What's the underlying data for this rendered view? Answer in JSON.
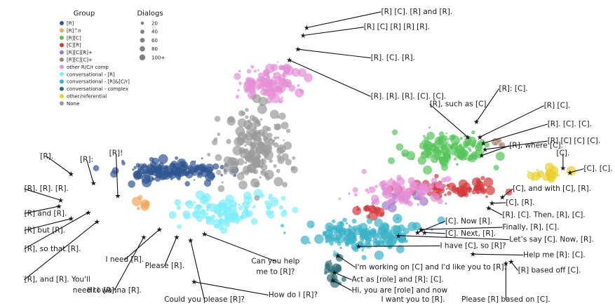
{
  "chart_data": {
    "type": "scatter",
    "title": "",
    "xlabel": "",
    "ylabel": "",
    "grid": false,
    "legend_placement": "top-left",
    "legend": {
      "group_title": "Group",
      "groups": [
        {
          "label": "[R]",
          "color": "#2f5592"
        },
        {
          "label": "[R]^n",
          "color": "#f2a55a"
        },
        {
          "label": "[R][C]",
          "color": "#56c45a"
        },
        {
          "label": "[C][R]",
          "color": "#d13b3b"
        },
        {
          "label": "[R][C][R]+",
          "color": "#9b7cc9"
        },
        {
          "label": "[R][C][C]+",
          "color": "#a9806f"
        },
        {
          "label": "other R/C/r comp",
          "color": "#e58fd6"
        },
        {
          "label": "conversational - [R]",
          "color": "#7eeefa"
        },
        {
          "label": "conversational - [R]&[C/r]",
          "color": "#3ab2c8"
        },
        {
          "label": "conversational - complex",
          "color": "#2e6e78"
        },
        {
          "label": "other/referential",
          "color": "#e8d02c"
        },
        {
          "label": "None",
          "color": "#9a9a9a"
        }
      ],
      "size_title": "Dialogs",
      "sizes": [
        {
          "label": "20",
          "value": 20
        },
        {
          "label": "40",
          "value": 40
        },
        {
          "label": "60",
          "value": 60
        },
        {
          "label": "80",
          "value": 80
        },
        {
          "label": "100+",
          "value": 100
        }
      ]
    },
    "clusters": [
      {
        "group": "[R]",
        "cx": -8,
        "cy": 1.4,
        "sx": 2.6,
        "sy": 0.55,
        "n": 150
      },
      {
        "group": "[R]^n",
        "cx": -10,
        "cy": -0.7,
        "sx": 0.8,
        "sy": 0.5,
        "n": 6
      },
      {
        "group": "[R][C]",
        "cx": 8,
        "cy": 2.8,
        "sx": 2.2,
        "sy": 1.0,
        "n": 130
      },
      {
        "group": "[C][R]",
        "cx": 8.2,
        "cy": 0.2,
        "sx": 2.4,
        "sy": 0.45,
        "n": 70
      },
      {
        "group": "[C][R]",
        "cx": 3.4,
        "cy": -1.2,
        "sx": 0.9,
        "sy": 0.4,
        "n": 16
      },
      {
        "group": "[R][C][R]+",
        "cx": 5.6,
        "cy": -0.4,
        "sx": 1.2,
        "sy": 0.45,
        "n": 25
      },
      {
        "group": "[R][C][C]+",
        "cx": 10.8,
        "cy": 3.0,
        "sx": 0.5,
        "sy": 0.5,
        "n": 6
      },
      {
        "group": "other R/C/r comp",
        "cx": -2.5,
        "cy": 7.2,
        "sx": 1.5,
        "sy": 0.9,
        "n": 110
      },
      {
        "group": "other R/C/r comp",
        "cx": 5.2,
        "cy": 0.2,
        "sx": 2.4,
        "sy": 0.8,
        "n": 80
      },
      {
        "group": "conversational - [R]",
        "cx": -4.8,
        "cy": -1.3,
        "sx": 2.4,
        "sy": 0.9,
        "n": 130
      },
      {
        "group": "conversational - [R]&[C/r]",
        "cx": 2.8,
        "cy": -2.8,
        "sx": 2.7,
        "sy": 0.9,
        "n": 160
      },
      {
        "group": "conversational - complex",
        "cx": 1.4,
        "cy": -5.0,
        "sx": 0.45,
        "sy": 0.7,
        "n": 22
      },
      {
        "group": "other/referential",
        "cx": 13.6,
        "cy": 1.2,
        "sx": 1.1,
        "sy": 0.3,
        "n": 22
      },
      {
        "group": "None",
        "cx": -3.2,
        "cy": 2.8,
        "sx": 1.7,
        "sy": 2.0,
        "n": 190
      }
    ],
    "annotations": [
      {
        "text": "[R] [C]. [R] and [R].",
        "x": -0.3,
        "y": 10.7,
        "lx": 4.0,
        "ly": 11.6,
        "anchor": "start"
      },
      {
        "text": "[R] [C] [R] [R] [R].",
        "x": -0.5,
        "y": 10.2,
        "lx": 3.0,
        "ly": 10.6,
        "anchor": "start"
      },
      {
        "text": "[R]. [C]. [R].",
        "x": -0.8,
        "y": 9.3,
        "lx": 3.4,
        "ly": 8.6,
        "anchor": "start"
      },
      {
        "text": "[R]. [R]. [R]. [C]. [C].",
        "x": -1.3,
        "y": 8.6,
        "lx": 3.4,
        "ly": 6.1,
        "anchor": "start"
      },
      {
        "text": "[R]: [C].",
        "x": 9.5,
        "y": 4.6,
        "lx": 10.8,
        "ly": 6.6,
        "anchor": "start"
      },
      {
        "text": "[R], such as [C].",
        "x": 9.0,
        "y": 3.6,
        "lx": 6.8,
        "ly": 5.6,
        "anchor": "start"
      },
      {
        "text": "[R] [C].",
        "x": 9.7,
        "y": 3.6,
        "lx": 13.4,
        "ly": 5.5,
        "anchor": "start"
      },
      {
        "text": "[R]. [C]. [C].",
        "x": 9.9,
        "y": 3.2,
        "lx": 13.6,
        "ly": 4.3,
        "anchor": "start"
      },
      {
        "text": "[R] [C] [C] [C].",
        "x": 10.0,
        "y": 2.8,
        "lx": 13.6,
        "ly": 3.2,
        "anchor": "start"
      },
      {
        "text": "[R], where [C].",
        "x": 9.8,
        "y": 2.4,
        "lx": 11.4,
        "ly": 2.9,
        "anchor": "start"
      },
      {
        "text": "[C].",
        "x": 14.5,
        "y": 1.6,
        "lx": 14.5,
        "ly": 2.4,
        "anchor": "middle"
      },
      {
        "text": "[C]. [C].",
        "x": 14.9,
        "y": 1.3,
        "lx": 15.7,
        "ly": 1.4,
        "anchor": "start"
      },
      {
        "text": "[C], and with [C], [R].",
        "x": 11.0,
        "y": -0.3,
        "lx": 11.6,
        "ly": 0.1,
        "anchor": "start"
      },
      {
        "text": "[C], [R].",
        "x": 10.4,
        "y": -0.7,
        "lx": 11.2,
        "ly": -0.8,
        "anchor": "start"
      },
      {
        "text": "[R]. [C]. Then, [R], [C].",
        "x": 10.2,
        "y": -1.0,
        "lx": 11.0,
        "ly": -1.6,
        "anchor": "start"
      },
      {
        "text": "Finally, [R], [C].",
        "x": 6.3,
        "y": -2.4,
        "lx": 11.0,
        "ly": -2.4,
        "anchor": "start"
      },
      {
        "text": "[C]. Now [R].",
        "x": 6.1,
        "y": -2.6,
        "lx": 7.7,
        "ly": -2.0,
        "anchor": "start"
      },
      {
        "text": "[C]. Next, [R].",
        "x": 6.5,
        "y": -2.6,
        "lx": 7.7,
        "ly": -2.8,
        "anchor": "start"
      },
      {
        "text": "Let’s say [C]. Now, [R].",
        "x": 5.0,
        "y": -2.8,
        "lx": 11.4,
        "ly": -3.2,
        "anchor": "start"
      },
      {
        "text": "I have [C], so [R]?",
        "x": 2.7,
        "y": -3.5,
        "lx": 7.4,
        "ly": -3.6,
        "anchor": "start"
      },
      {
        "text": "Help me [R]: [C].",
        "x": 9.3,
        "y": -4.0,
        "lx": 12.2,
        "ly": -4.2,
        "anchor": "start"
      },
      {
        "text": "[R] based off [C].",
        "x": 11.5,
        "y": -4.5,
        "lx": 11.9,
        "ly": -5.2,
        "anchor": "start"
      },
      {
        "text": "Please [R] based on [C].",
        "x": 11.2,
        "y": -4.6,
        "lx": 11.2,
        "ly": -7.1,
        "anchor": "middle"
      },
      {
        "text": "I'm working on [C] and I'd like you to [R].",
        "x": 1.5,
        "y": -4.1,
        "lx": 2.5,
        "ly": -5.0,
        "anchor": "start"
      },
      {
        "text": "Act as [role] and [R]: [C].",
        "x": 1.3,
        "y": -5.2,
        "lx": 2.3,
        "ly": -5.8,
        "anchor": "start"
      },
      {
        "text": "Hi, you are [role] and now",
        "x": 1.2,
        "y": -5.7,
        "lx": 2.3,
        "ly": -6.5,
        "anchor": "start"
      },
      {
        "text": "I want you to [R].",
        "x": null,
        "y": null,
        "lx": 4.0,
        "ly": -7.1,
        "anchor": "start"
      },
      {
        "text": "Can you help",
        "x": -6.2,
        "y": -2.7,
        "lx": -2.1,
        "ly": -4.6,
        "anchor": "middle"
      },
      {
        "text": "me to [R]?",
        "x": null,
        "y": null,
        "lx": -2.1,
        "ly": -5.3,
        "anchor": "middle"
      },
      {
        "text": "How do I [R]?",
        "x": -6.8,
        "y": -5.8,
        "lx": -2.5,
        "ly": -6.8,
        "anchor": "start"
      },
      {
        "text": "Please [R].",
        "x": -7.8,
        "y": -2.9,
        "lx": -8.5,
        "ly": -4.9,
        "anchor": "middle"
      },
      {
        "text": "I need [R].",
        "x": -8.8,
        "y": -2.4,
        "lx": -10.8,
        "ly": -4.5,
        "anchor": "middle"
      },
      {
        "text": "Hi I wanna [R].",
        "x": -9.7,
        "y": -2.9,
        "lx": -11.4,
        "ly": -6.5,
        "anchor": "middle"
      },
      {
        "text": "Could you please [R]?",
        "x": -7.0,
        "y": -3.1,
        "lx": -6.2,
        "ly": -7.1,
        "anchor": "middle"
      },
      {
        "text": "[R].",
        "x": -13.9,
        "y": 1.2,
        "lx": -15.3,
        "ly": 2.2,
        "anchor": "middle"
      },
      {
        "text": "[R]:",
        "x": -12.6,
        "y": 0.6,
        "lx": -13.0,
        "ly": 2.0,
        "anchor": "middle"
      },
      {
        "text": "[R]!",
        "x": -11.2,
        "y": -0.2,
        "lx": -11.3,
        "ly": 2.4,
        "anchor": "middle"
      },
      {
        "text": "[R]. [R]. [R].",
        "x": -14.5,
        "y": -0.5,
        "lx": -16.6,
        "ly": 0.1,
        "anchor": "start"
      },
      {
        "text": "[R] and [R].",
        "x": -14.6,
        "y": -0.9,
        "lx": -16.6,
        "ly": -1.5,
        "anchor": "start"
      },
      {
        "text": "[R] but [R].",
        "x": -13.9,
        "y": -1.7,
        "lx": -16.6,
        "ly": -2.6,
        "anchor": "start"
      },
      {
        "text": "[R], so that [R].",
        "x": -12.9,
        "y": -1.3,
        "lx": -16.6,
        "ly": -3.8,
        "anchor": "start"
      },
      {
        "text": "[R], and [R]. You'll",
        "x": -12.4,
        "y": -1.9,
        "lx": -16.6,
        "ly": -5.8,
        "anchor": "start"
      },
      {
        "text": "need to [R].",
        "x": null,
        "y": null,
        "lx": -13.8,
        "ly": -6.5,
        "anchor": "start"
      }
    ],
    "xlim": [
      -18,
      17.5
    ],
    "ylim": [
      -7.5,
      12.5
    ]
  }
}
